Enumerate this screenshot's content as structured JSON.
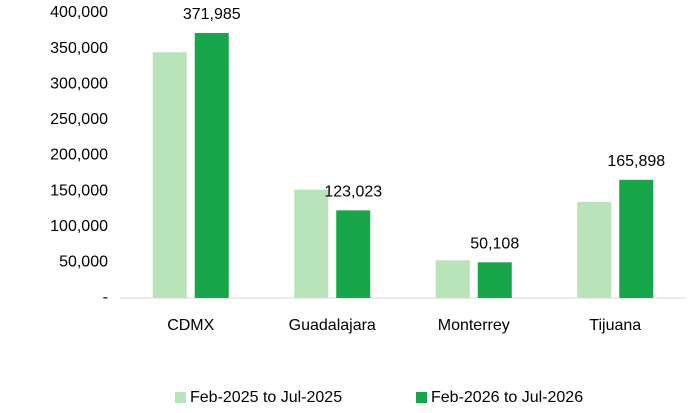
{
  "chart_data": {
    "type": "bar",
    "categories": [
      "CDMX",
      "Guadalajara",
      "Monterrey",
      "Tijuana"
    ],
    "series": [
      {
        "name": "Feb-2025 to Jul-2025",
        "color": "#b9e4b9",
        "values": [
          345000,
          152000,
          53000,
          135000
        ]
      },
      {
        "name": "Feb-2026 to Jul-2026",
        "color": "#17a74a",
        "values": [
          371985,
          123023,
          50108,
          165898
        ],
        "value_labels": [
          "371,985",
          "123,023",
          "50,108",
          "165,898"
        ]
      }
    ],
    "ylim": [
      0,
      400000
    ],
    "yticks": [
      {
        "value": 0,
        "label": "-"
      },
      {
        "value": 50000,
        "label": "50,000"
      },
      {
        "value": 100000,
        "label": "100,000"
      },
      {
        "value": 150000,
        "label": "150,000"
      },
      {
        "value": 200000,
        "label": "200,000"
      },
      {
        "value": 250000,
        "label": "250,000"
      },
      {
        "value": 300000,
        "label": "300,000"
      },
      {
        "value": 350000,
        "label": "350,000"
      },
      {
        "value": 400000,
        "label": "400,000"
      }
    ],
    "grid": false,
    "legend": "bottom"
  }
}
